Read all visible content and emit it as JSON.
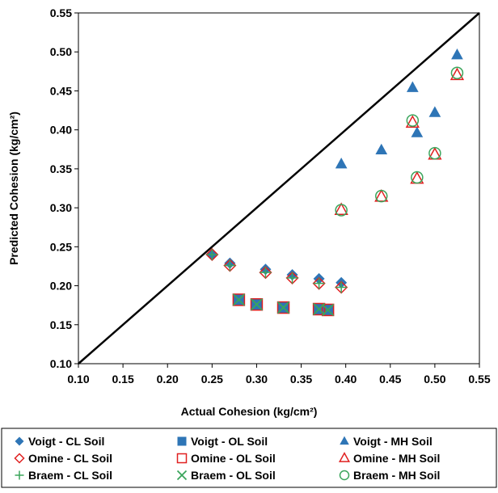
{
  "chart_data": {
    "type": "scatter",
    "title": "",
    "xlabel": "Actual Cohesion  (kg/cm²)",
    "ylabel": "Predicted Cohesion (kg/cm²)",
    "xlim": [
      0.1,
      0.55
    ],
    "ylim": [
      0.1,
      0.55
    ],
    "x_ticks": [
      "0.10",
      "0.15",
      "0.20",
      "0.25",
      "0.30",
      "0.35",
      "0.40",
      "0.45",
      "0.50",
      "0.55"
    ],
    "y_ticks": [
      "0.10",
      "0.15",
      "0.20",
      "0.25",
      "0.30",
      "0.35",
      "0.40",
      "0.45",
      "0.50",
      "0.55"
    ],
    "grid": false,
    "legend_position": "bottom",
    "reference_line": {
      "from": [
        0.1,
        0.1
      ],
      "to": [
        0.55,
        0.55
      ],
      "color": "#000000"
    },
    "series": [
      {
        "name": "Voigt - CL Soil",
        "marker": "diamond-filled",
        "color": "#2E75B6",
        "points": [
          [
            0.25,
            0.24
          ],
          [
            0.27,
            0.229
          ],
          [
            0.31,
            0.221
          ],
          [
            0.34,
            0.214
          ],
          [
            0.37,
            0.209
          ],
          [
            0.395,
            0.204
          ]
        ]
      },
      {
        "name": "Voigt - OL Soil",
        "marker": "square-filled",
        "color": "#2E75B6",
        "points": [
          [
            0.28,
            0.182
          ],
          [
            0.3,
            0.176
          ],
          [
            0.33,
            0.172
          ],
          [
            0.37,
            0.17
          ],
          [
            0.38,
            0.169
          ]
        ]
      },
      {
        "name": "Voigt - MH Soil",
        "marker": "triangle-filled",
        "color": "#2E75B6",
        "points": [
          [
            0.395,
            0.356
          ],
          [
            0.44,
            0.374
          ],
          [
            0.475,
            0.454
          ],
          [
            0.48,
            0.396
          ],
          [
            0.5,
            0.422
          ],
          [
            0.525,
            0.496
          ]
        ]
      },
      {
        "name": "Omine - CL Soil",
        "marker": "diamond-open",
        "color": "#E02020",
        "points": [
          [
            0.25,
            0.24
          ],
          [
            0.27,
            0.226
          ],
          [
            0.31,
            0.217
          ],
          [
            0.34,
            0.21
          ],
          [
            0.37,
            0.203
          ],
          [
            0.395,
            0.198
          ]
        ]
      },
      {
        "name": "Omine - OL Soil",
        "marker": "square-open",
        "color": "#E02020",
        "points": [
          [
            0.28,
            0.182
          ],
          [
            0.3,
            0.176
          ],
          [
            0.33,
            0.172
          ],
          [
            0.37,
            0.17
          ],
          [
            0.38,
            0.169
          ]
        ]
      },
      {
        "name": "Omine - MH Soil",
        "marker": "triangle-open",
        "color": "#E02020",
        "points": [
          [
            0.395,
            0.297
          ],
          [
            0.44,
            0.314
          ],
          [
            0.475,
            0.409
          ],
          [
            0.48,
            0.337
          ],
          [
            0.5,
            0.368
          ],
          [
            0.525,
            0.47
          ]
        ]
      },
      {
        "name": "Braem - CL Soil",
        "marker": "plus",
        "color": "#3BA55C",
        "points": [
          [
            0.25,
            0.24
          ],
          [
            0.27,
            0.226
          ],
          [
            0.31,
            0.217
          ],
          [
            0.34,
            0.21
          ],
          [
            0.37,
            0.203
          ],
          [
            0.395,
            0.198
          ]
        ]
      },
      {
        "name": "Braem - OL Soil",
        "marker": "x",
        "color": "#3BA55C",
        "points": [
          [
            0.28,
            0.182
          ],
          [
            0.3,
            0.176
          ],
          [
            0.33,
            0.172
          ],
          [
            0.37,
            0.17
          ],
          [
            0.38,
            0.169
          ]
        ]
      },
      {
        "name": "Braem - MH Soil",
        "marker": "circle-open",
        "color": "#3BA55C",
        "points": [
          [
            0.395,
            0.297
          ],
          [
            0.44,
            0.315
          ],
          [
            0.475,
            0.412
          ],
          [
            0.48,
            0.339
          ],
          [
            0.5,
            0.37
          ],
          [
            0.525,
            0.473
          ]
        ]
      }
    ]
  }
}
